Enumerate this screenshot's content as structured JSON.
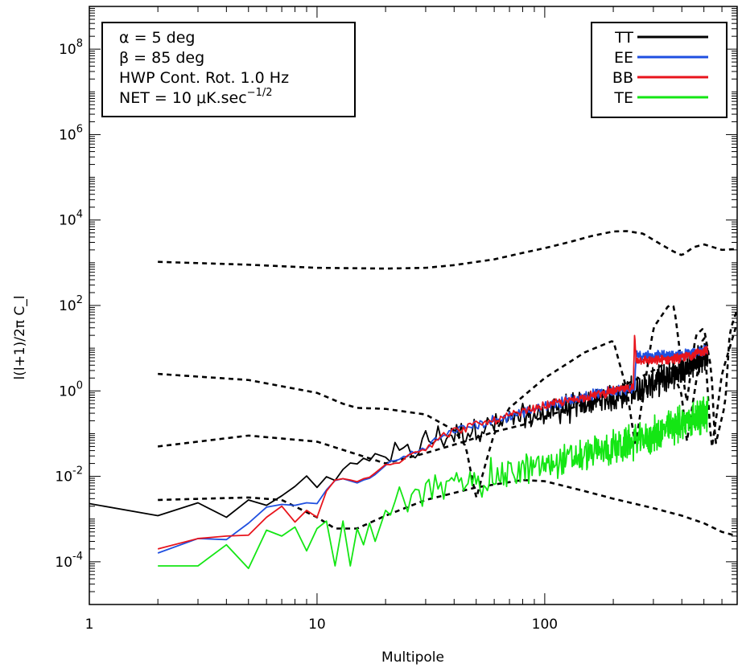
{
  "chart_data": {
    "type": "line",
    "xscale": "log",
    "yscale": "log",
    "xlabel": "Multipole",
    "ylabel": "l(l+1)/2π C_l",
    "xlim": [
      1,
      700
    ],
    "ylim": [
      1e-05,
      1000000000
    ],
    "x_ticks": [
      {
        "value": 1,
        "label": "1"
      },
      {
        "value": 10,
        "label": "10"
      },
      {
        "value": 100,
        "label": "100"
      }
    ],
    "y_ticks": [
      {
        "value": 0.0001,
        "base": "10",
        "exp": "-4"
      },
      {
        "value": 0.01,
        "base": "10",
        "exp": "-2"
      },
      {
        "value": 1,
        "base": "10",
        "exp": "0"
      },
      {
        "value": 100,
        "base": "10",
        "exp": "2"
      },
      {
        "value": 10000,
        "base": "10",
        "exp": "4"
      },
      {
        "value": 1000000,
        "base": "10",
        "exp": "6"
      },
      {
        "value": 100000000,
        "base": "10",
        "exp": "8"
      }
    ],
    "annotation": {
      "alpha": "α = 5 deg",
      "beta": "β = 85 deg",
      "hwp": "HWP Cont. Rot. 1.0 Hz",
      "net_prefix": "NET = 10 μK.sec",
      "net_exp": "−1/2"
    },
    "legend": {
      "position": "top-right",
      "entries": [
        {
          "label": "TT",
          "color": "#000000"
        },
        {
          "label": "EE",
          "color": "#1f4fe0"
        },
        {
          "label": "BB",
          "color": "#e8141c"
        },
        {
          "label": "TE",
          "color": "#14e614"
        }
      ]
    },
    "series": [
      {
        "name": "TT",
        "color": "#000000",
        "style": "solid",
        "noise": 0.8,
        "x": [
          1,
          2,
          3,
          4,
          5,
          6,
          7,
          8,
          9,
          10,
          11,
          12,
          13,
          14,
          15,
          16,
          17,
          18,
          20,
          25,
          30,
          40,
          60,
          100,
          200,
          300,
          400,
          520
        ],
        "y": [
          0.0023,
          0.0012,
          0.0024,
          0.0011,
          0.0028,
          0.0021,
          0.0035,
          0.0058,
          0.0102,
          0.0055,
          0.0098,
          0.008,
          0.0145,
          0.0205,
          0.0195,
          0.0265,
          0.023,
          0.034,
          0.028,
          0.034,
          0.065,
          0.1,
          0.16,
          0.3,
          0.7,
          1.5,
          3.2,
          6.5
        ]
      },
      {
        "name": "EE",
        "color": "#1f4fe0",
        "style": "solid",
        "noise": 0.3,
        "x": [
          2,
          3,
          4,
          5,
          6,
          7,
          8,
          9,
          10,
          11,
          12,
          13,
          14,
          15,
          16,
          17,
          18,
          20,
          25,
          30,
          40,
          60,
          100,
          200,
          248,
          252,
          300,
          400,
          520
        ],
        "y": [
          0.00016,
          0.00035,
          0.00033,
          0.0008,
          0.0019,
          0.0022,
          0.0021,
          0.0024,
          0.0023,
          0.0048,
          0.008,
          0.0088,
          0.0078,
          0.007,
          0.0082,
          0.009,
          0.011,
          0.018,
          0.03,
          0.05,
          0.12,
          0.2,
          0.45,
          1.05,
          1.1,
          7.2,
          6.5,
          6.8,
          9.2
        ]
      },
      {
        "name": "BB",
        "color": "#e8141c",
        "style": "solid",
        "noise": 0.25,
        "x": [
          2,
          3,
          4,
          5,
          6,
          7,
          8,
          9,
          10,
          11,
          12,
          13,
          14,
          15,
          16,
          17,
          18,
          20,
          25,
          30,
          40,
          60,
          100,
          200,
          245,
          248,
          252,
          300,
          400,
          520
        ],
        "y": [
          0.0002,
          0.00035,
          0.0004,
          0.00042,
          0.0011,
          0.002,
          0.00085,
          0.0016,
          0.0011,
          0.0045,
          0.0082,
          0.0088,
          0.0082,
          0.0075,
          0.0088,
          0.0095,
          0.012,
          0.019,
          0.03,
          0.05,
          0.12,
          0.2,
          0.45,
          1.0,
          1.2,
          20,
          5.5,
          5.0,
          6.0,
          9.0
        ]
      },
      {
        "name": "TE",
        "color": "#14e614",
        "style": "solid",
        "noise": 1.0,
        "x": [
          2,
          3,
          4,
          5,
          6,
          7,
          8,
          9,
          10,
          11,
          12,
          13,
          14,
          15,
          16,
          17,
          18,
          20,
          25,
          30,
          40,
          60,
          100,
          200,
          300,
          400,
          520
        ],
        "y": [
          8e-05,
          8e-05,
          0.00025,
          7e-05,
          0.00055,
          0.0004,
          0.00065,
          0.00018,
          0.0006,
          0.0009,
          8e-05,
          0.0009,
          8e-05,
          0.0006,
          0.00025,
          0.0008,
          0.0003,
          0.0016,
          0.0028,
          0.0045,
          0.006,
          0.01,
          0.018,
          0.045,
          0.09,
          0.18,
          0.3
        ]
      },
      {
        "name": "theory-TT",
        "color": "#000000",
        "style": "dashed",
        "noise": 0,
        "x": [
          2,
          5,
          10,
          20,
          30,
          40,
          60,
          80,
          100,
          130,
          160,
          200,
          230,
          270,
          320,
          370,
          400,
          450,
          500,
          600,
          700
        ],
        "y": [
          1050,
          900,
          760,
          730,
          760,
          880,
          1200,
          1700,
          2200,
          3100,
          4200,
          5400,
          5500,
          4800,
          2800,
          1800,
          1500,
          2300,
          2700,
          2000,
          2100
        ]
      },
      {
        "name": "theory-EE",
        "color": "#000000",
        "style": "dashed",
        "noise": 0,
        "x": [
          2,
          5,
          10,
          13,
          15,
          20,
          30,
          40,
          45,
          50,
          55,
          60,
          70,
          100,
          150,
          200,
          230,
          250,
          300,
          350,
          370,
          420,
          460,
          500,
          540,
          560,
          620,
          650,
          700
        ],
        "y": [
          2.5,
          1.8,
          0.9,
          0.5,
          0.4,
          0.38,
          0.28,
          0.12,
          0.05,
          0.003,
          0.02,
          0.1,
          0.4,
          2.0,
          8.0,
          15.0,
          1.0,
          0.05,
          30,
          100,
          95,
          0.5,
          20,
          30,
          3,
          0.05,
          0.5,
          25,
          80
        ]
      },
      {
        "name": "theory-BB",
        "color": "#000000",
        "style": "dashed",
        "noise": 0,
        "x": [
          2,
          5,
          10,
          20,
          30,
          40,
          50,
          60,
          80,
          100,
          150,
          200,
          300,
          350,
          400,
          420,
          500,
          540,
          570,
          600,
          700
        ],
        "y": [
          0.05,
          0.09,
          0.065,
          0.02,
          0.035,
          0.055,
          0.08,
          0.11,
          0.16,
          0.25,
          0.5,
          1.0,
          3.0,
          5.0,
          0.8,
          0.06,
          25,
          0.04,
          0.3,
          2.5,
          40
        ]
      },
      {
        "name": "theory-TE",
        "color": "#000000",
        "style": "dashed",
        "noise": 0,
        "x": [
          2,
          5,
          7,
          10,
          12,
          15,
          20,
          30,
          50,
          80,
          100,
          150,
          200,
          300,
          400,
          500,
          600,
          700
        ],
        "y": [
          0.0028,
          0.0032,
          0.0028,
          0.0011,
          0.0006,
          0.0006,
          0.0012,
          0.0028,
          0.0055,
          0.0082,
          0.0077,
          0.0045,
          0.003,
          0.0018,
          0.0012,
          0.0008,
          0.0005,
          0.0004
        ]
      }
    ]
  }
}
